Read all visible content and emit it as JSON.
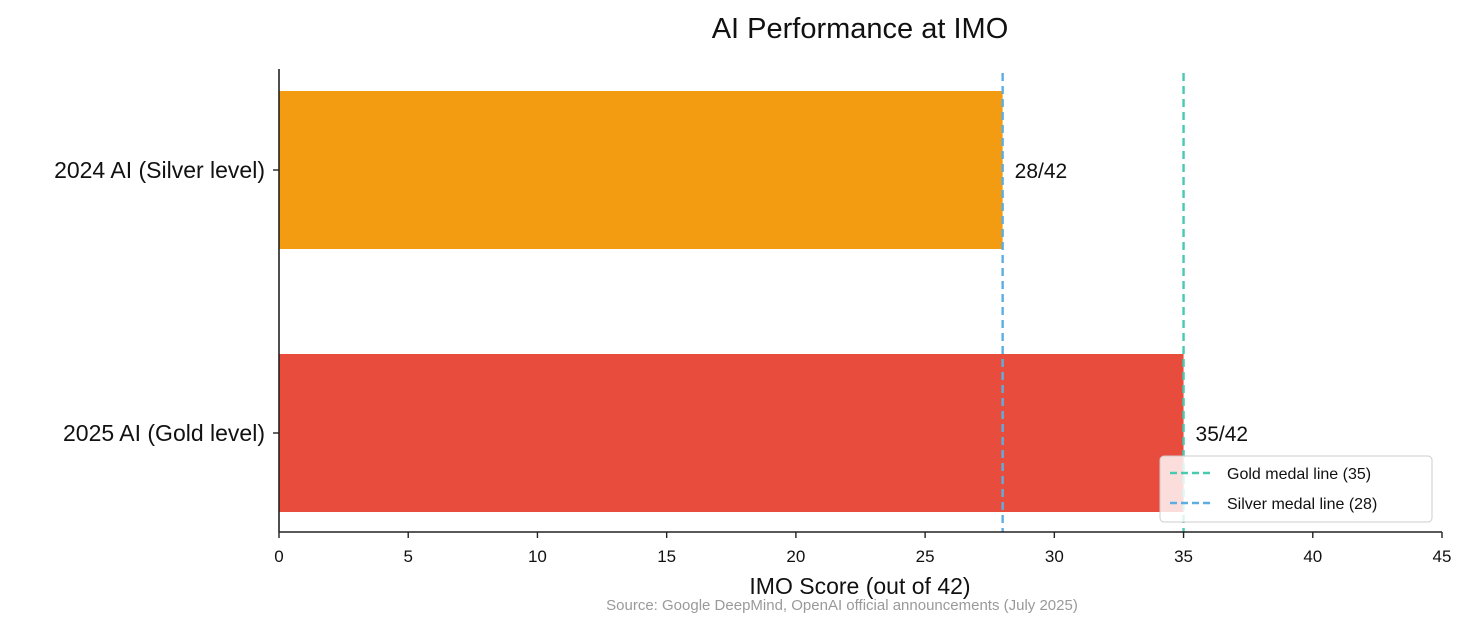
{
  "chart_data": {
    "type": "bar",
    "orientation": "horizontal",
    "title": "AI Performance at IMO",
    "xlabel": "IMO Score (out of 42)",
    "ylabel": "",
    "xlim": [
      0,
      45
    ],
    "xticks": [
      0,
      5,
      10,
      15,
      20,
      25,
      30,
      35,
      40,
      45
    ],
    "categories": [
      "2024 AI (Silver level)",
      "2025 AI (Gold level)"
    ],
    "values": [
      28,
      35
    ],
    "bar_labels": [
      "28/42",
      "35/42"
    ],
    "bar_colors": [
      "#f39c12",
      "#e74c3c"
    ],
    "reference_lines": [
      {
        "label": "Gold medal line (35)",
        "value": 35,
        "color": "#48c9b0",
        "style": "dashed"
      },
      {
        "label": "Silver medal line (28)",
        "value": 28,
        "color": "#5dade2",
        "style": "dashed"
      }
    ],
    "legend_position": "lower-right",
    "grid": false,
    "source_note": "Source: Google DeepMind, OpenAI official announcements (July 2025)"
  }
}
